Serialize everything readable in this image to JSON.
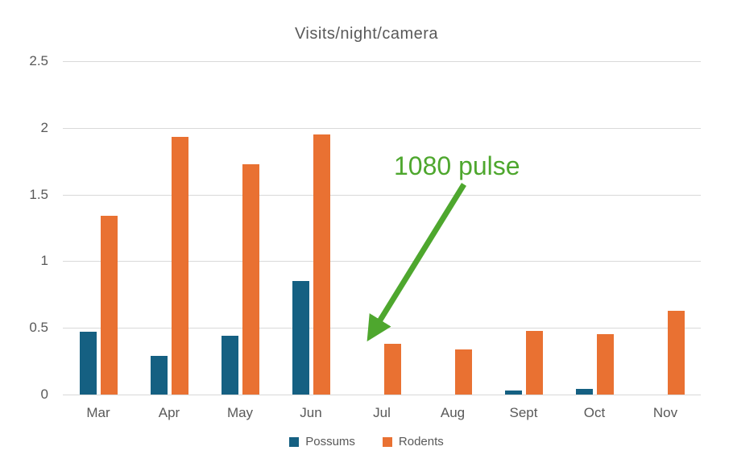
{
  "chart_data": {
    "type": "bar",
    "title": "Visits/night/camera",
    "categories": [
      "Mar",
      "Apr",
      "May",
      "Jun",
      "Jul",
      "Aug",
      "Sept",
      "Oct",
      "Nov"
    ],
    "series": [
      {
        "name": "Possums",
        "color": "#156082",
        "values": [
          0.47,
          0.29,
          0.44,
          0.85,
          0,
          0,
          0.03,
          0.04,
          0
        ]
      },
      {
        "name": "Rodents",
        "color": "#E97132",
        "values": [
          1.34,
          1.93,
          1.73,
          1.95,
          0.38,
          0.34,
          0.48,
          0.45,
          0.63
        ]
      }
    ],
    "ylim": [
      0,
      2.5
    ],
    "yticks": [
      0,
      0.5,
      1,
      1.5,
      2,
      2.5
    ],
    "grid": true,
    "legend_position": "bottom",
    "annotation": {
      "text": "1080 pulse",
      "color": "#4EA72E",
      "arrow_from": [
        576,
        229
      ],
      "arrow_to": [
        468,
        404
      ]
    },
    "text_color": "#595959",
    "gridline_color": "#D9D9D9"
  }
}
